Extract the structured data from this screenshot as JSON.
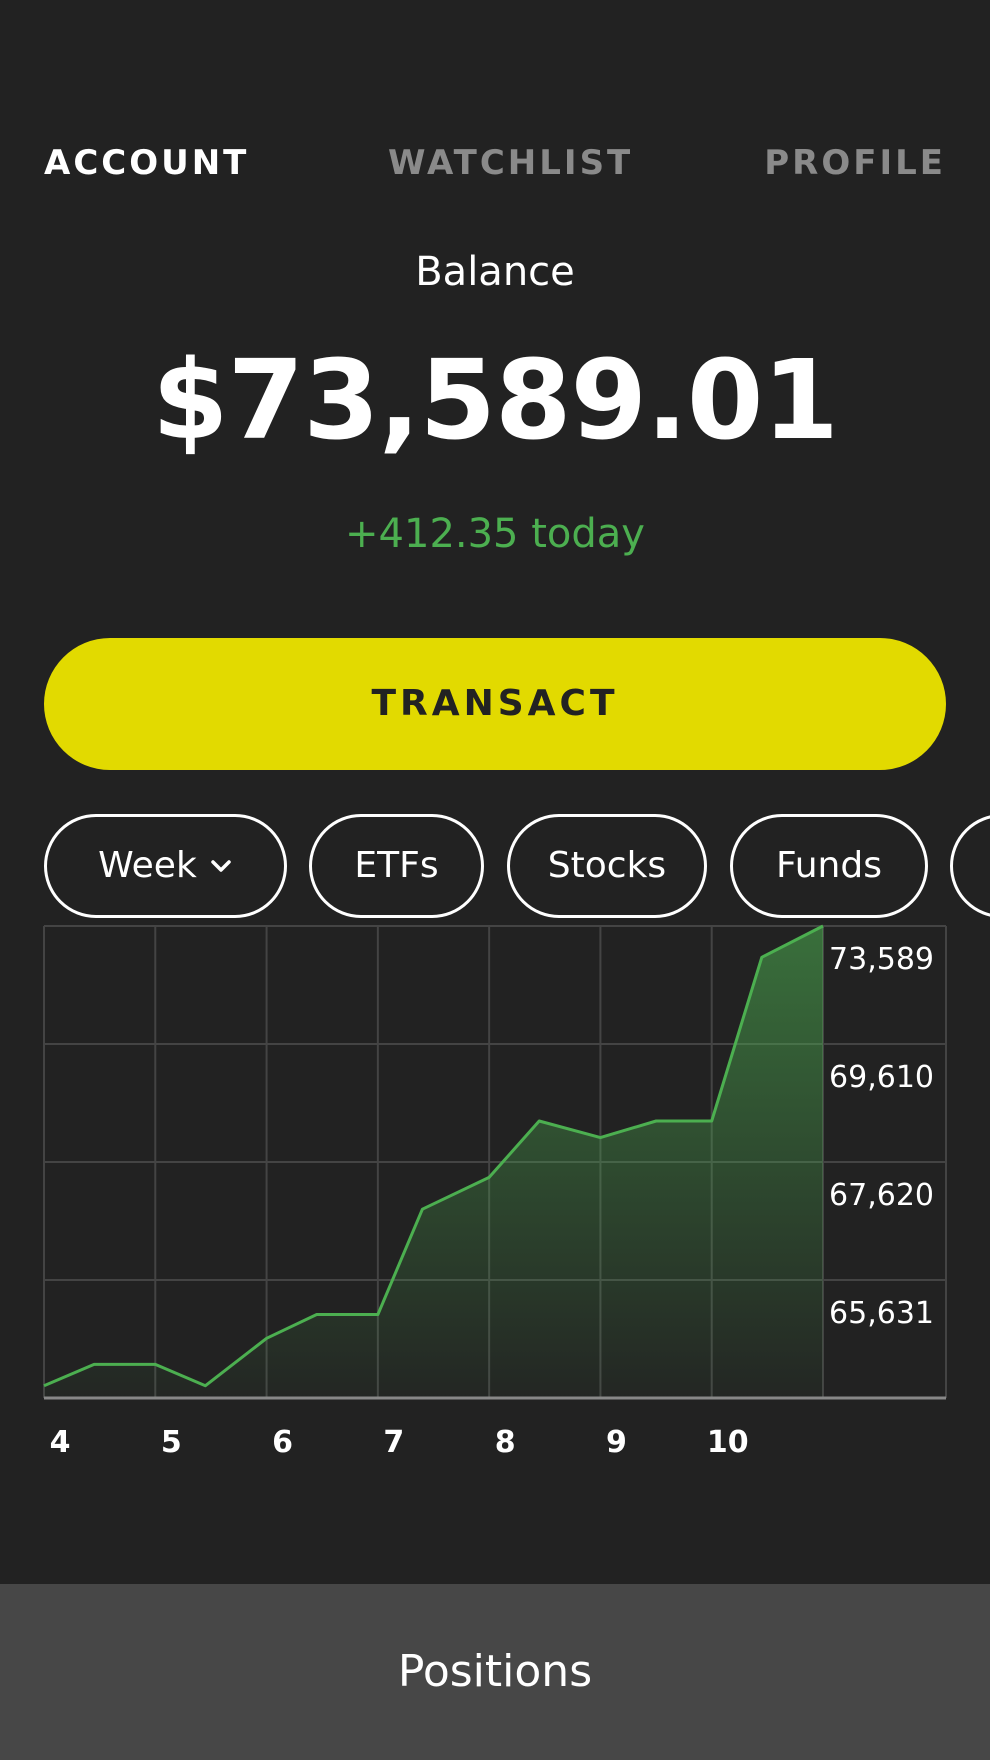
{
  "tabs": [
    {
      "label": "ACCOUNT",
      "active": true
    },
    {
      "label": "WATCHLIST",
      "active": false
    },
    {
      "label": "PROFILE",
      "active": false
    }
  ],
  "balance": {
    "label": "Balance",
    "amount": "$73,589.01",
    "change": "+412.35 today"
  },
  "transact_label": "TRANSACT",
  "filters": {
    "period": "Week",
    "chips": [
      "ETFs",
      "Stocks",
      "Funds"
    ]
  },
  "colors": {
    "background": "#222222",
    "accent": "#e2da00",
    "positive": "#4caf50",
    "grid": "#444444",
    "bottom_bar": "#474747"
  },
  "chart_data": {
    "type": "area",
    "x_tick_labels": [
      "4",
      "5",
      "6",
      "7",
      "8",
      "9",
      "10"
    ],
    "y_tick_labels": [
      "73,589",
      "69,610",
      "67,620",
      "65,631"
    ],
    "grid": true,
    "series": [
      {
        "x": [
          4.0,
          4.45,
          5.0,
          5.45,
          6.0,
          6.45,
          7.0,
          7.4,
          8.0,
          8.45,
          9.0,
          9.5,
          10.0,
          10.45,
          11.0
        ],
        "values": [
          63900,
          64350,
          64350,
          63900,
          64900,
          65400,
          65400,
          67620,
          68290,
          69480,
          69130,
          69480,
          69480,
          72930,
          73589
        ]
      }
    ],
    "ylim": [
      63641,
      73589
    ]
  },
  "positions_label": "Positions"
}
